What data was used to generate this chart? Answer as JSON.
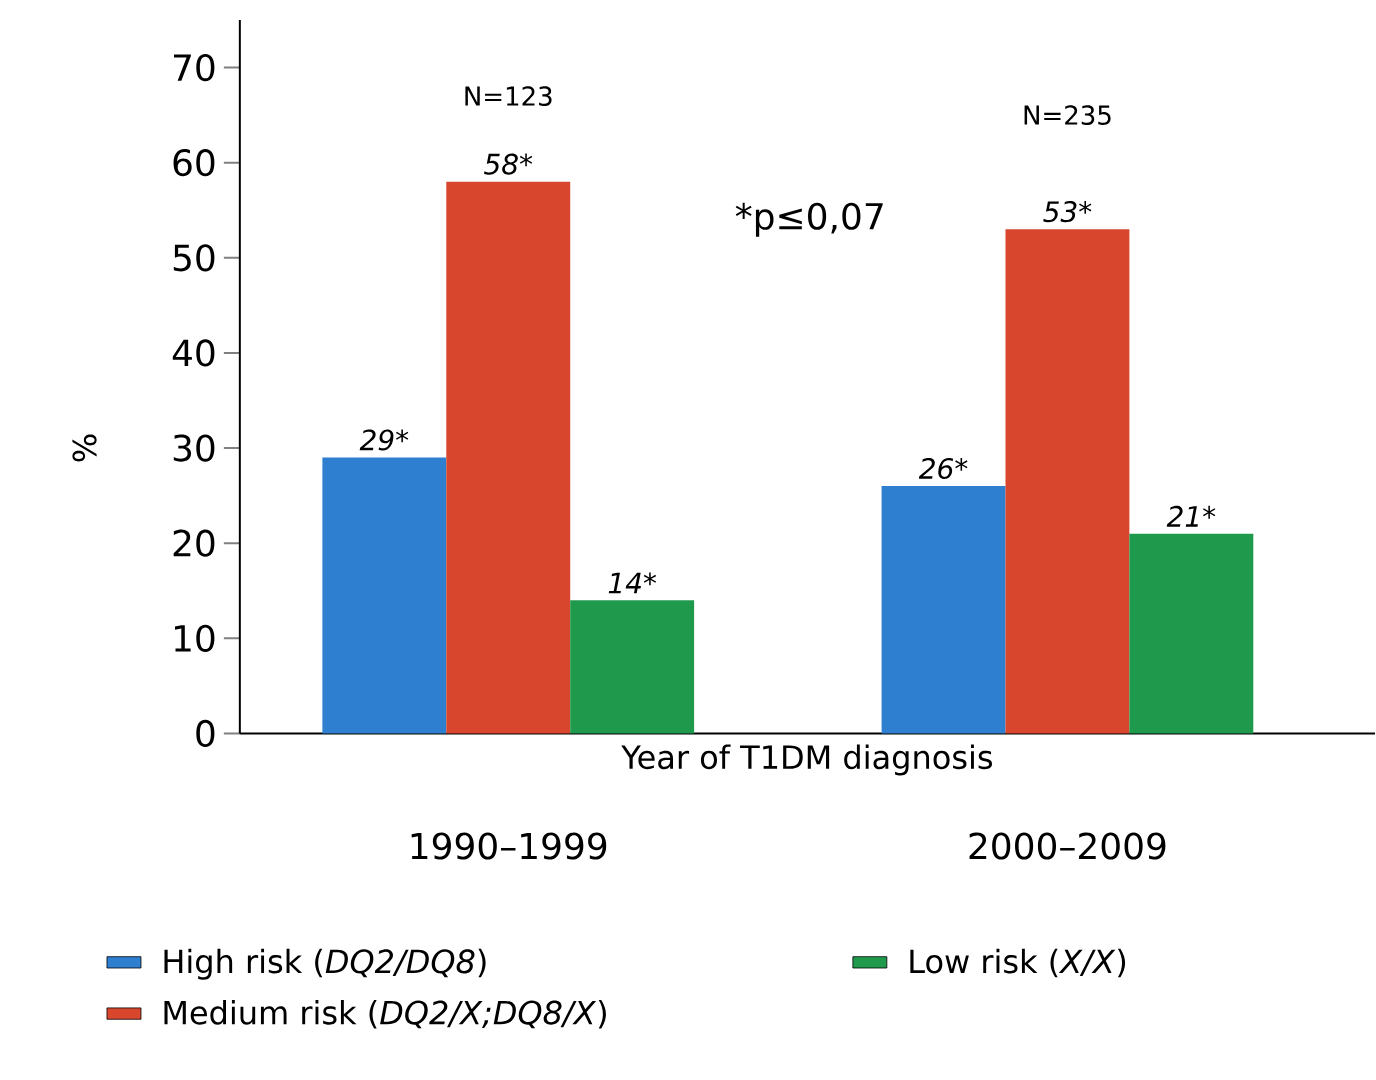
{
  "chart_data": {
    "type": "bar",
    "xlabel": "Year of T1DM diagnosis",
    "ylabel": "%",
    "categories": [
      "1990–1999",
      "2000–2009"
    ],
    "series": [
      {
        "name": "High risk (*DQ2/DQ8*)",
        "color": "#2f7fd0",
        "values": [
          29,
          26
        ],
        "value_labels": [
          "29*",
          "26*"
        ]
      },
      {
        "name": "Medium risk (*DQ2/X;DQ8/X*)",
        "color": "#d8462e",
        "values": [
          58,
          53
        ],
        "value_labels": [
          "58*",
          "53*"
        ]
      },
      {
        "name": "Low risk (*X/X*)",
        "color": "#1f9a4c",
        "values": [
          14,
          21
        ],
        "value_labels": [
          "14*",
          "21*"
        ]
      }
    ],
    "ylim": [
      0,
      75
    ],
    "yticks": [
      0,
      10,
      20,
      30,
      40,
      50,
      60,
      70
    ],
    "grid": false,
    "legend": "bottom",
    "annotations": [
      "N=123",
      "N=235",
      "*p≤0,07"
    ]
  }
}
